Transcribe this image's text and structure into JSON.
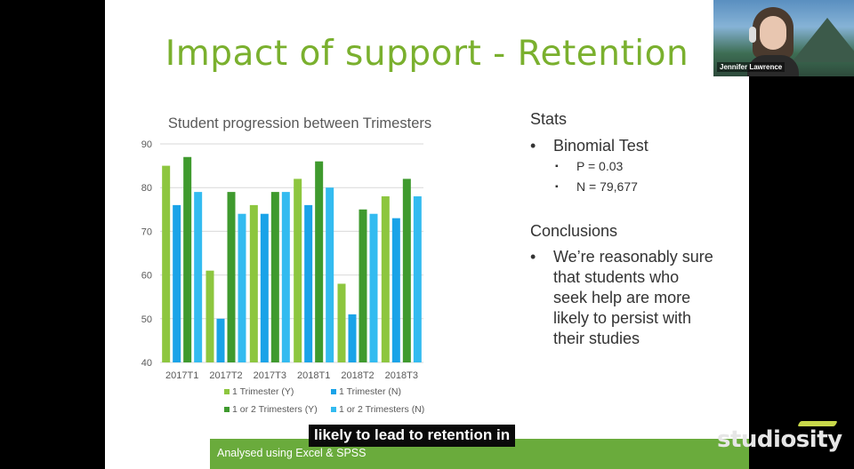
{
  "slide": {
    "title": "Impact of support - Retention",
    "footer": "Analysed using Excel & SPSS"
  },
  "chart_data": {
    "type": "bar",
    "title": "Student progression between Trimesters",
    "categories": [
      "2017T1",
      "2017T2",
      "2017T3",
      "2018T1",
      "2018T2",
      "2018T3"
    ],
    "ylim": [
      40,
      90
    ],
    "yticks": [
      40,
      50,
      60,
      70,
      80,
      90
    ],
    "grid": true,
    "legend_position": "bottom",
    "series": [
      {
        "name": "1 Trimester (Y)",
        "color": "#8dc63f",
        "values": [
          85,
          61,
          76,
          82,
          58,
          78
        ]
      },
      {
        "name": "1 Trimester (N)",
        "color": "#1aa3e8",
        "values": [
          76,
          50,
          74,
          76,
          51,
          73
        ]
      },
      {
        "name": "1 or 2 Trimesters (Y)",
        "color": "#3f9a2e",
        "values": [
          87,
          79,
          79,
          86,
          75,
          82
        ]
      },
      {
        "name": "1 or 2 Trimesters (N)",
        "color": "#33bbf0",
        "values": [
          79,
          74,
          79,
          80,
          74,
          78
        ]
      }
    ]
  },
  "stats": {
    "heading": "Stats",
    "test": "Binomial Test",
    "p_value": "P = 0.03",
    "n_value": "N = 79,677"
  },
  "conclusions": {
    "heading": "Conclusions",
    "text": "We’re reasonably sure that students who seek help are more likely to persist with their studies"
  },
  "caption": "likely to lead to retention in",
  "webcam": {
    "name": "Jennifer Lawrence"
  },
  "brand": {
    "logo": "studiosity"
  }
}
